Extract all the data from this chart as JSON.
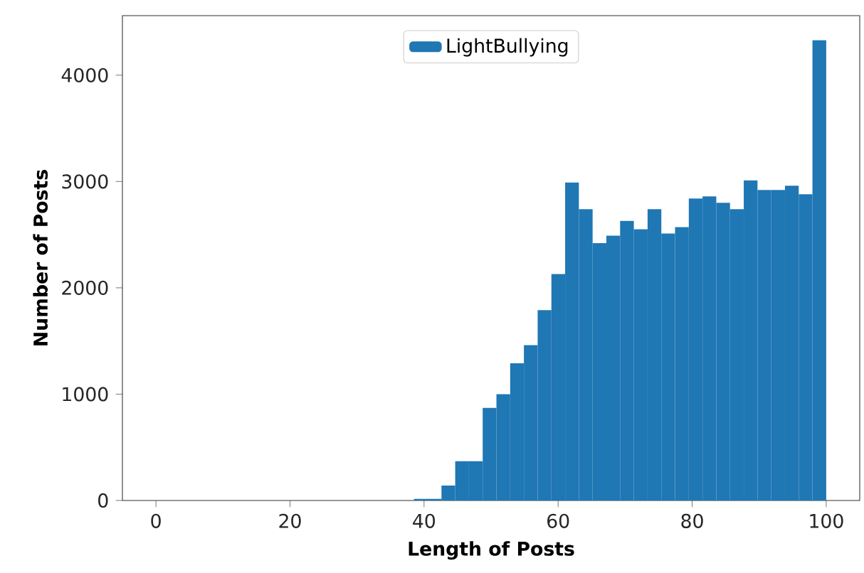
{
  "chart_data": {
    "type": "histogram",
    "xlabel": "Length of Posts",
    "ylabel": "Number of Posts",
    "bins": [
      38.5,
      40.55,
      42.6,
      44.65,
      46.7,
      48.75,
      50.8,
      52.85,
      54.9,
      56.95,
      59,
      61.05,
      63.1,
      65.15,
      67.2,
      69.25,
      71.3,
      73.35,
      75.4,
      77.45,
      79.5,
      81.55,
      83.6,
      85.65,
      87.7,
      89.75,
      91.8,
      93.85,
      95.9,
      97.95,
      100
    ],
    "series": [
      {
        "name": "LightBullying",
        "color": "#1f77b4",
        "values": [
          15,
          15,
          140,
          370,
          370,
          870,
          1000,
          1290,
          1460,
          1790,
          2130,
          2990,
          2740,
          2420,
          2490,
          2630,
          2550,
          2740,
          2510,
          2570,
          2840,
          2860,
          2800,
          2740,
          3010,
          2920,
          2920,
          2960,
          2880,
          4330
        ]
      }
    ],
    "xlim": [
      -5,
      105
    ],
    "ylim": [
      0,
      4560
    ],
    "xticks": [
      0,
      20,
      40,
      60,
      80,
      100
    ],
    "yticks": [
      0,
      1000,
      2000,
      3000,
      4000
    ],
    "legend": "top",
    "grid": false
  }
}
